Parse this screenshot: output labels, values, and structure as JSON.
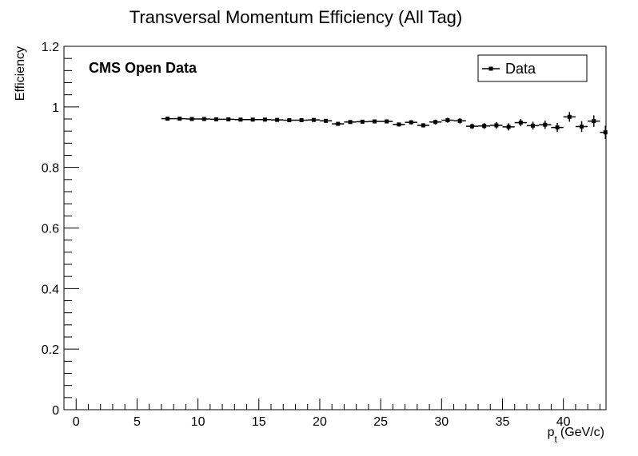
{
  "chart_data": {
    "type": "scatter",
    "title": "Transversal Momentum Efficiency (All Tag)",
    "xlabel": {
      "main": "p",
      "sub": "t",
      "unit": "(GeV/c)"
    },
    "ylabel": "Efficiency",
    "xlim": [
      -1,
      43.5
    ],
    "ylim": [
      0,
      1.2
    ],
    "x_ticks": [
      0,
      5,
      10,
      15,
      20,
      25,
      30,
      35,
      40
    ],
    "x_tick_labels": [
      "0",
      "5",
      "10",
      "15",
      "20",
      "25",
      "30",
      "35",
      "40"
    ],
    "y_ticks": [
      0,
      0.2,
      0.4,
      0.6,
      0.8,
      1,
      1.2
    ],
    "y_tick_labels": [
      "0",
      "0.2",
      "0.4",
      "0.6",
      "0.8",
      "1",
      "1.2"
    ],
    "annotation": "CMS Open Data",
    "legend": {
      "position": "top-right",
      "entries": [
        "Data"
      ]
    },
    "grid": false,
    "series": [
      {
        "name": "Data",
        "x_halfwidth": 0.5,
        "x": [
          7.5,
          8.5,
          9.5,
          10.5,
          11.5,
          12.5,
          13.5,
          14.5,
          15.5,
          16.5,
          17.5,
          18.5,
          19.5,
          20.5,
          21.5,
          22.5,
          23.5,
          24.5,
          25.5,
          26.5,
          27.5,
          28.5,
          29.5,
          30.5,
          31.5,
          32.5,
          33.5,
          34.5,
          35.5,
          36.5,
          37.5,
          38.5,
          39.5,
          40.5,
          41.5,
          42.5,
          43.5
        ],
        "y": [
          0.961,
          0.961,
          0.96,
          0.96,
          0.959,
          0.959,
          0.958,
          0.958,
          0.958,
          0.957,
          0.956,
          0.956,
          0.957,
          0.954,
          0.944,
          0.95,
          0.951,
          0.952,
          0.952,
          0.942,
          0.949,
          0.939,
          0.95,
          0.956,
          0.954,
          0.936,
          0.937,
          0.939,
          0.934,
          0.948,
          0.938,
          0.941,
          0.932,
          0.967,
          0.935,
          0.953,
          0.916
        ],
        "y_err": [
          0.003,
          0.003,
          0.003,
          0.003,
          0.003,
          0.003,
          0.003,
          0.003,
          0.003,
          0.003,
          0.003,
          0.004,
          0.004,
          0.004,
          0.005,
          0.005,
          0.005,
          0.005,
          0.006,
          0.006,
          0.007,
          0.007,
          0.008,
          0.008,
          0.009,
          0.009,
          0.01,
          0.011,
          0.012,
          0.012,
          0.013,
          0.014,
          0.015,
          0.016,
          0.018,
          0.019,
          0.022
        ]
      }
    ]
  }
}
